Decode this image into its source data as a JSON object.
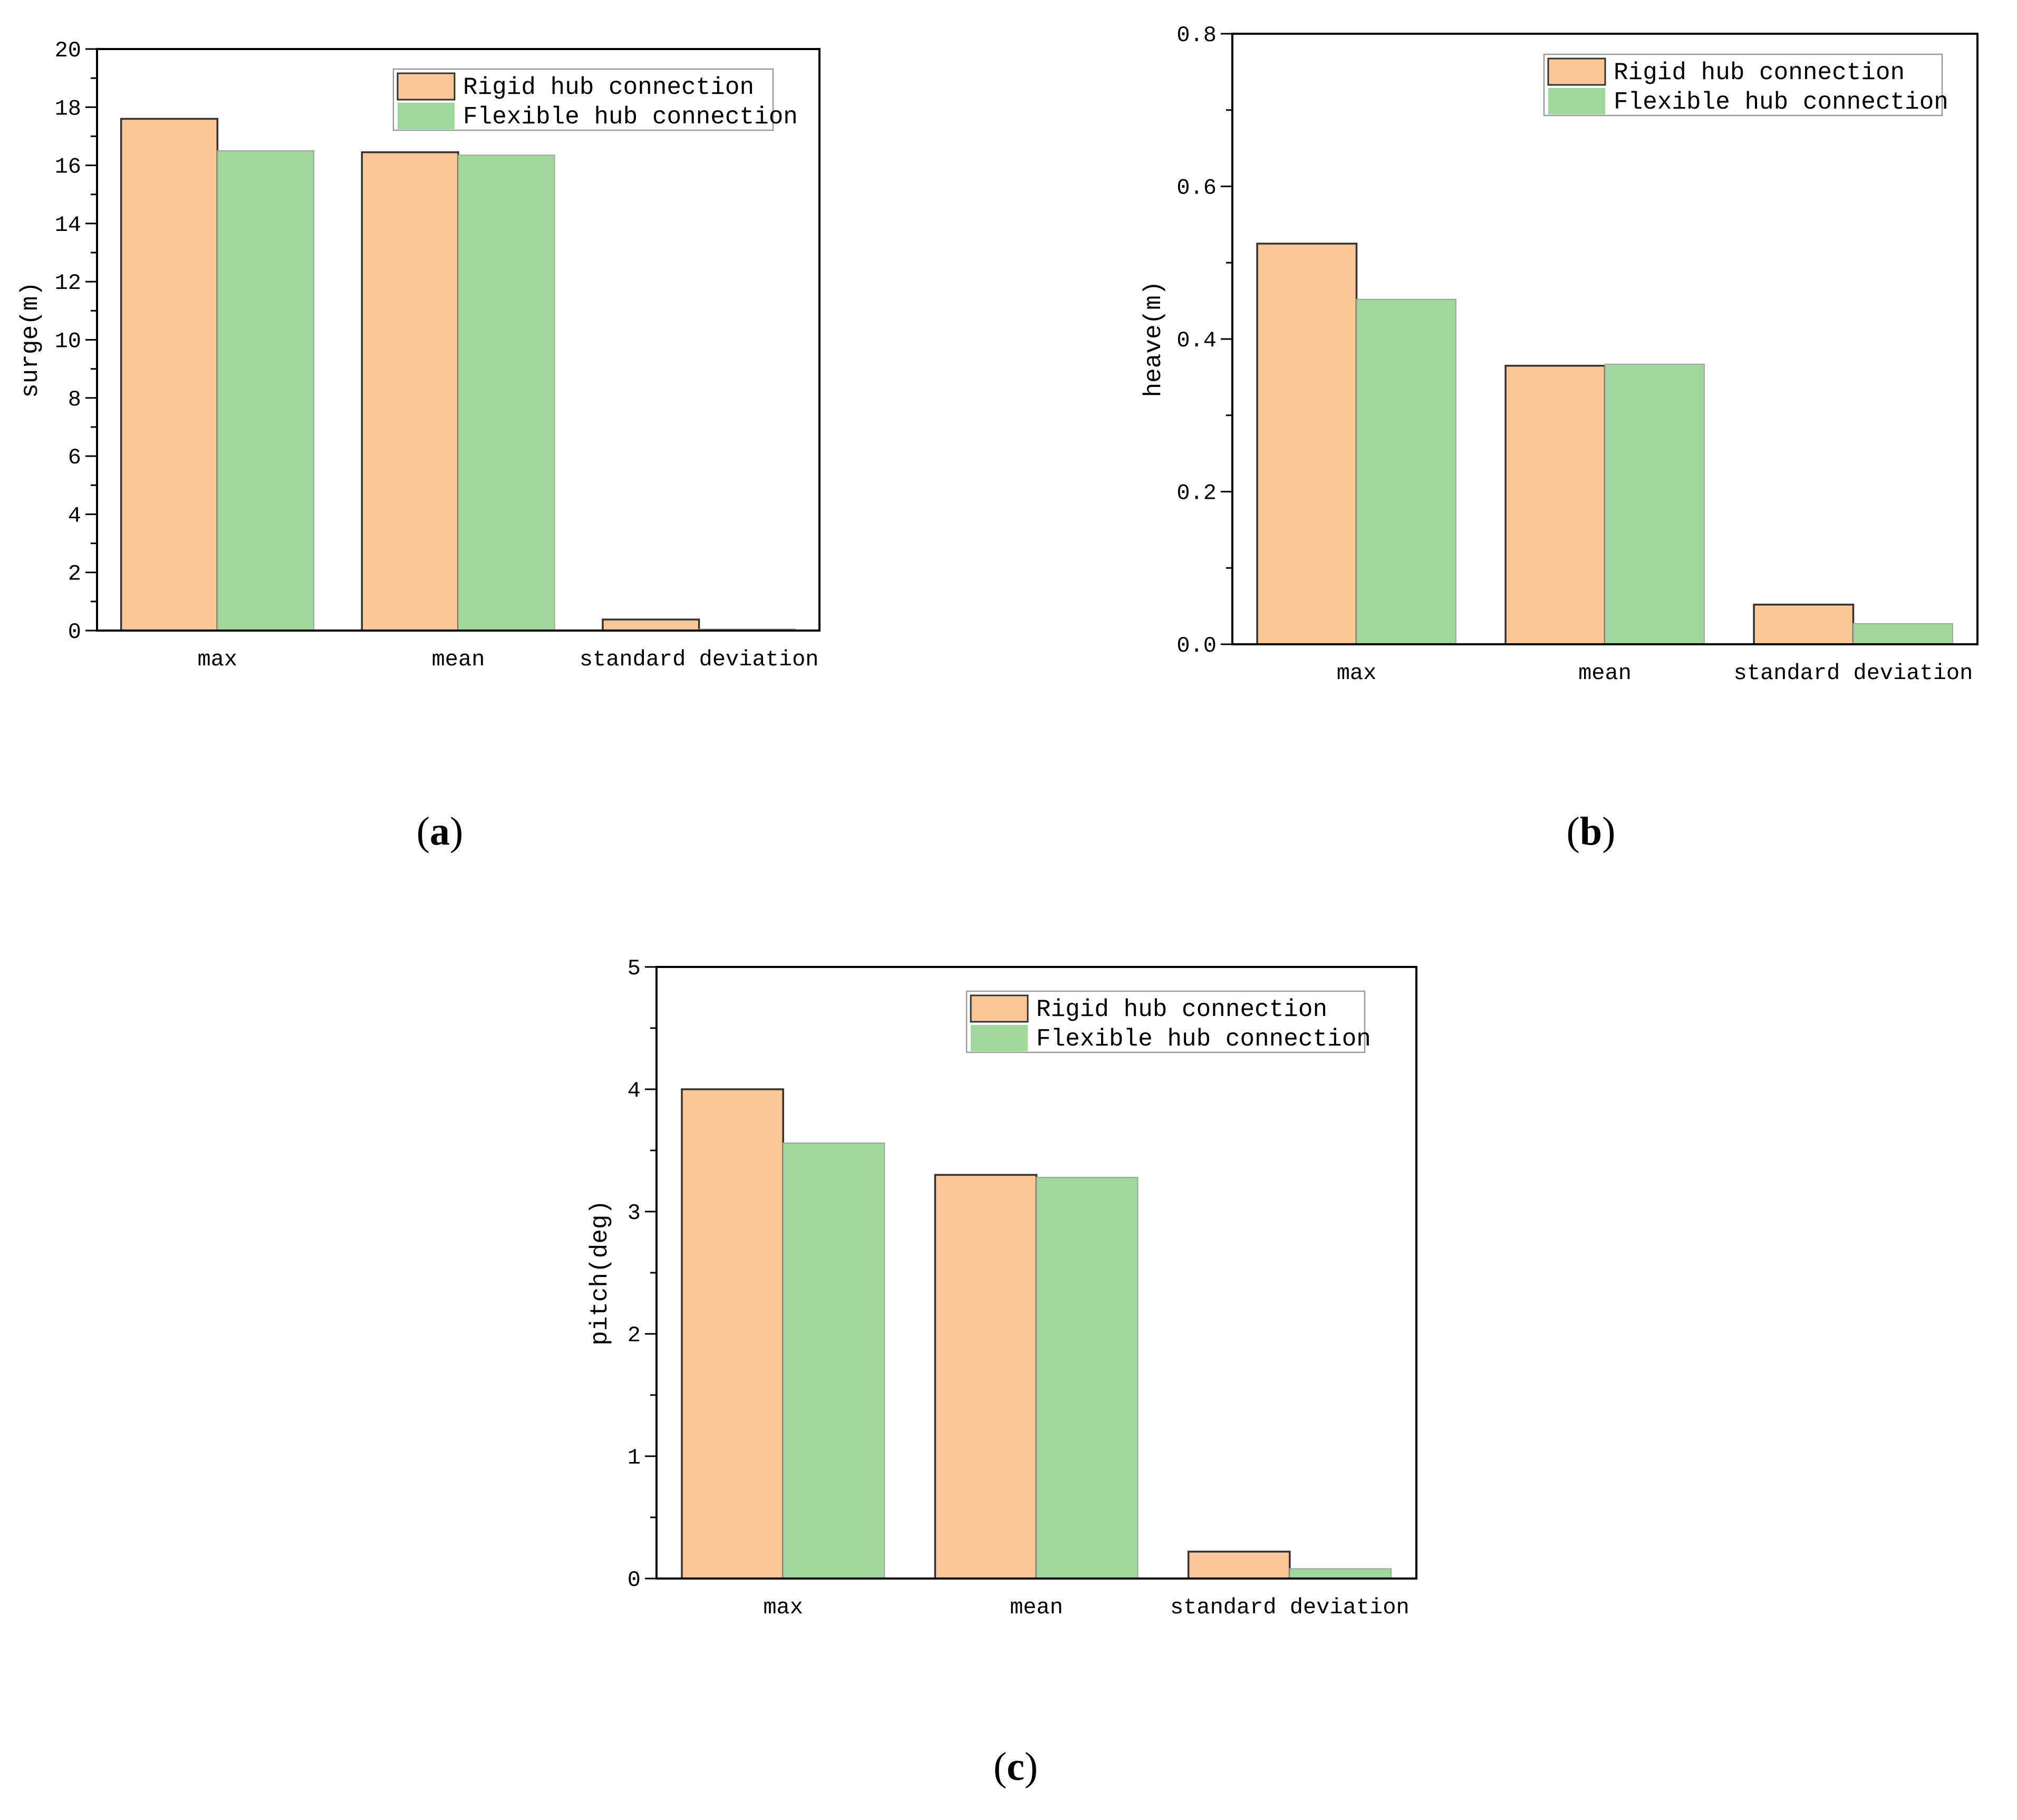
{
  "colors": {
    "rigid_fill": "#fbc797",
    "rigid_stroke": "#333333",
    "flexible_fill": "#9fd79c",
    "flexible_stroke": "#9aa89a"
  },
  "chart_data": [
    {
      "type": "bar",
      "panel": "a",
      "caption": {
        "open": "(",
        "letter": "a",
        "close": ")"
      },
      "categories": [
        "max",
        "mean",
        "standard deviation"
      ],
      "series": [
        {
          "name": "Rigid hub connection",
          "values": [
            17.6,
            16.45,
            0.38
          ]
        },
        {
          "name": "Flexible hub connection",
          "values": [
            16.5,
            16.35,
            0.05
          ]
        }
      ],
      "ylabel": "surge(m)",
      "xlabel": "",
      "ylim": [
        0,
        20
      ],
      "yticks": [
        0,
        2,
        4,
        6,
        8,
        10,
        12,
        14,
        16,
        18,
        20
      ],
      "ytick_labels": [
        "0",
        "2",
        "4",
        "6",
        "8",
        "10",
        "12",
        "14",
        "16",
        "18",
        "20"
      ],
      "minor_step": 1,
      "legend": "top-right"
    },
    {
      "type": "bar",
      "panel": "b",
      "caption": {
        "open": "(",
        "letter": "b",
        "close": ")"
      },
      "categories": [
        "max",
        "mean",
        "standard deviation"
      ],
      "series": [
        {
          "name": "Rigid hub connection",
          "values": [
            0.525,
            0.365,
            0.052
          ]
        },
        {
          "name": "Flexible hub connection",
          "values": [
            0.452,
            0.367,
            0.027
          ]
        }
      ],
      "ylabel": "heave(m)",
      "xlabel": "",
      "ylim": [
        0,
        0.8
      ],
      "yticks": [
        0,
        0.2,
        0.4,
        0.6,
        0.8
      ],
      "ytick_labels": [
        "0.0",
        "0.2",
        "0.4",
        "0.6",
        "0.8"
      ],
      "minor_step": 0.1,
      "legend": "top-right"
    },
    {
      "type": "bar",
      "panel": "c",
      "caption": {
        "open": "(",
        "letter": "c",
        "close": ")"
      },
      "categories": [
        "max",
        "mean",
        "standard deviation"
      ],
      "series": [
        {
          "name": "Rigid hub connection",
          "values": [
            4.0,
            3.3,
            0.22
          ]
        },
        {
          "name": "Flexible hub connection",
          "values": [
            3.56,
            3.28,
            0.08
          ]
        }
      ],
      "ylabel": "pitch(deg)",
      "xlabel": "",
      "ylim": [
        0,
        5
      ],
      "yticks": [
        0,
        1,
        2,
        3,
        4,
        5
      ],
      "ytick_labels": [
        "0",
        "1",
        "2",
        "3",
        "4",
        "5"
      ],
      "minor_step": 0.5,
      "legend": "top-right"
    }
  ]
}
